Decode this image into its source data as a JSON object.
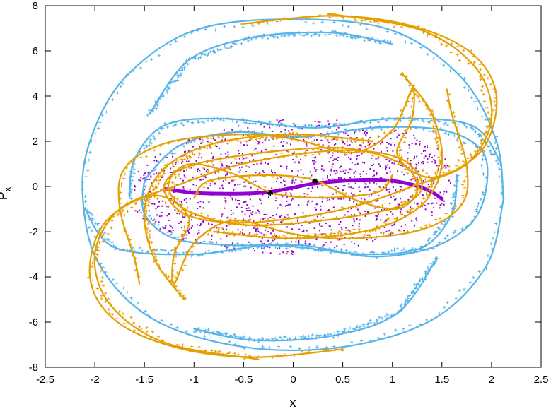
{
  "chart_data": {
    "type": "scatter",
    "title": "",
    "xlabel": "x",
    "ylabel_main": "P",
    "ylabel_sub": "x",
    "xlim": [
      -2.5,
      2.5
    ],
    "ylim": [
      -8,
      8
    ],
    "xticks": [
      -2.5,
      -2,
      -1.5,
      -1,
      -0.5,
      0,
      0.5,
      1,
      1.5,
      2,
      2.5
    ],
    "xtick_labels": [
      "-2.5",
      "-2",
      "-1.5",
      "-1",
      "-0.5",
      "0",
      "0.5",
      "1",
      "1.5",
      "2",
      "2.5"
    ],
    "yticks": [
      -8,
      -6,
      -4,
      -2,
      0,
      2,
      4,
      6,
      8
    ],
    "ytick_labels": [
      "-8",
      "-6",
      "-4",
      "-2",
      "0",
      "2",
      "4",
      "6",
      "8"
    ],
    "grid": false,
    "legend": "none",
    "colors": {
      "purple": "#9400d3",
      "blue": "#56b4e9",
      "orange": "#e69f00",
      "black": "#000000"
    },
    "series": [
      {
        "color": "purple",
        "marker": "dot",
        "curve": [
          [
            -1.3,
            -0.1
          ],
          [
            -1.0,
            -0.28
          ],
          [
            -0.7,
            -0.32
          ],
          [
            -0.4,
            -0.3
          ],
          [
            -0.2,
            -0.22
          ],
          [
            0.0,
            -0.05
          ],
          [
            0.2,
            0.12
          ],
          [
            0.5,
            0.25
          ],
          [
            0.8,
            0.3
          ],
          [
            1.05,
            0.22
          ],
          [
            1.25,
            0.02
          ],
          [
            1.4,
            -0.25
          ],
          [
            1.5,
            -0.55
          ]
        ],
        "scatter_region": {
          "x_range": [
            -1.6,
            1.6
          ],
          "y_range": [
            -3.2,
            3.0
          ]
        }
      },
      {
        "color": "blue",
        "marker": "plus",
        "curves": [
          [
            [
              2.12,
              -0.6
            ],
            [
              2.05,
              2.0
            ],
            [
              1.7,
              4.8
            ],
            [
              1.0,
              6.9
            ],
            [
              0.0,
              7.4
            ],
            [
              -1.0,
              6.9
            ],
            [
              -1.7,
              4.8
            ],
            [
              -2.05,
              2.0
            ],
            [
              -2.12,
              -0.6
            ],
            [
              -1.95,
              -3.5
            ],
            [
              -1.4,
              -5.9
            ],
            [
              -0.5,
              -7.1
            ],
            [
              0.5,
              -7.1
            ],
            [
              1.4,
              -5.9
            ],
            [
              1.95,
              -3.5
            ],
            [
              2.12,
              -0.6
            ]
          ],
          [
            [
              -1.5,
              0.3
            ],
            [
              -1.15,
              1.8
            ],
            [
              -0.6,
              2.4
            ],
            [
              0.1,
              2.2
            ],
            [
              0.8,
              2.6
            ],
            [
              1.5,
              2.5
            ],
            [
              1.9,
              1.6
            ],
            [
              1.95,
              0.0
            ],
            [
              1.8,
              -1.6
            ],
            [
              1.4,
              -2.7
            ],
            [
              0.8,
              -3.1
            ],
            [
              0.1,
              -2.6
            ],
            [
              -0.6,
              -2.6
            ],
            [
              -1.2,
              -2.3
            ],
            [
              -1.5,
              -1.2
            ],
            [
              -1.5,
              0.3
            ]
          ],
          [
            [
              -1.65,
              -0.5
            ],
            [
              -1.6,
              1.2
            ],
            [
              -1.3,
              2.7
            ],
            [
              -0.7,
              3.0
            ],
            [
              0.2,
              2.6
            ],
            [
              1.0,
              3.0
            ],
            [
              1.8,
              2.7
            ],
            [
              2.1,
              1.0
            ]
          ],
          [
            [
              1.65,
              0.5
            ],
            [
              1.6,
              -1.2
            ],
            [
              1.3,
              -2.7
            ],
            [
              0.7,
              -3.0
            ],
            [
              -0.2,
              -2.6
            ],
            [
              -1.0,
              -3.0
            ],
            [
              -1.8,
              -2.7
            ],
            [
              -2.1,
              -1.0
            ]
          ],
          [
            [
              -1.45,
              3.2
            ],
            [
              -1.05,
              5.6
            ],
            [
              -0.4,
              6.6
            ],
            [
              0.4,
              6.8
            ],
            [
              1.0,
              6.3
            ]
          ],
          [
            [
              1.45,
              -3.2
            ],
            [
              1.05,
              -5.6
            ],
            [
              0.4,
              -6.6
            ],
            [
              -0.4,
              -6.8
            ],
            [
              -1.0,
              -6.3
            ]
          ]
        ]
      },
      {
        "color": "orange",
        "marker": "plus",
        "curves": [
          [
            [
              0.35,
              7.65
            ],
            [
              1.3,
              6.9
            ],
            [
              1.85,
              5.2
            ],
            [
              2.0,
              3.0
            ],
            [
              1.75,
              1.0
            ],
            [
              1.2,
              0.0
            ],
            [
              0.6,
              -0.9
            ],
            [
              0.0,
              -1.4
            ],
            [
              -0.6,
              -1.6
            ],
            [
              -1.1,
              -1.2
            ],
            [
              -1.3,
              0.0
            ],
            [
              -1.05,
              0.9
            ],
            [
              -0.3,
              1.5
            ],
            [
              0.5,
              1.7
            ],
            [
              1.05,
              1.1
            ],
            [
              1.25,
              0.2
            ],
            [
              1.2,
              -0.6
            ],
            [
              1.0,
              -1.0
            ],
            [
              0.6,
              -0.55
            ],
            [
              0.2,
              0.3
            ],
            [
              -0.3,
              0.5
            ],
            [
              -0.85,
              0.25
            ],
            [
              -1.0,
              -0.5
            ]
          ],
          [
            [
              -0.35,
              -7.65
            ],
            [
              -1.3,
              -6.9
            ],
            [
              -1.85,
              -5.2
            ],
            [
              -2.0,
              -3.0
            ],
            [
              -1.75,
              -1.0
            ],
            [
              -1.2,
              0.0
            ],
            [
              -0.6,
              0.9
            ],
            [
              0.0,
              1.4
            ],
            [
              0.6,
              1.6
            ],
            [
              1.1,
              1.2
            ],
            [
              1.3,
              0.0
            ],
            [
              1.05,
              -0.9
            ],
            [
              0.3,
              -1.5
            ],
            [
              -0.5,
              -1.7
            ],
            [
              -1.05,
              -1.1
            ],
            [
              -1.25,
              -0.2
            ],
            [
              -1.2,
              0.6
            ],
            [
              -1.0,
              1.0
            ],
            [
              -0.6,
              0.55
            ],
            [
              -0.2,
              -0.3
            ],
            [
              0.3,
              -0.5
            ],
            [
              0.85,
              -0.25
            ],
            [
              1.0,
              0.5
            ]
          ],
          [
            [
              -0.5,
              7.2
            ],
            [
              0.4,
              7.55
            ],
            [
              1.2,
              7.1
            ],
            [
              1.8,
              5.9
            ],
            [
              2.05,
              4.0
            ],
            [
              1.9,
              1.6
            ],
            [
              1.4,
              0.4
            ],
            [
              1.05,
              1.4
            ],
            [
              1.2,
              3.0
            ],
            [
              1.2,
              4.3
            ],
            [
              1.0,
              2.5
            ],
            [
              0.6,
              1.5
            ],
            [
              0.0,
              2.1
            ],
            [
              -0.6,
              2.3
            ],
            [
              -1.3,
              1.9
            ],
            [
              -1.7,
              0.8
            ],
            [
              -1.75,
              -0.9
            ],
            [
              -1.6,
              -3.2
            ],
            [
              -1.55,
              -4.3
            ]
          ],
          [
            [
              0.5,
              -7.2
            ],
            [
              -0.4,
              -7.55
            ],
            [
              -1.2,
              -7.1
            ],
            [
              -1.8,
              -5.9
            ],
            [
              -2.05,
              -4.0
            ],
            [
              -1.9,
              -1.6
            ],
            [
              -1.4,
              -0.4
            ],
            [
              -1.05,
              -1.4
            ],
            [
              -1.2,
              -3.0
            ],
            [
              -1.2,
              -4.3
            ],
            [
              -1.0,
              -2.5
            ],
            [
              -0.6,
              -1.5
            ],
            [
              0.0,
              -2.1
            ],
            [
              0.6,
              -2.3
            ],
            [
              1.3,
              -1.9
            ],
            [
              1.7,
              -0.8
            ],
            [
              1.75,
              0.9
            ],
            [
              1.6,
              3.2
            ],
            [
              1.55,
              4.3
            ]
          ],
          [
            [
              -1.1,
              -5.0
            ],
            [
              -1.4,
              -3.2
            ],
            [
              -1.5,
              -1.0
            ],
            [
              -1.3,
              0.8
            ],
            [
              -0.8,
              1.9
            ],
            [
              0.0,
              2.3
            ],
            [
              0.8,
              2.0
            ]
          ],
          [
            [
              1.1,
              5.0
            ],
            [
              1.4,
              3.2
            ],
            [
              1.5,
              1.0
            ],
            [
              1.3,
              -0.8
            ],
            [
              0.8,
              -1.9
            ],
            [
              0.0,
              -2.3
            ],
            [
              -0.8,
              -2.0
            ]
          ]
        ]
      }
    ],
    "marked_points": [
      [
        -0.23,
        -0.28
      ],
      [
        0.22,
        0.24
      ]
    ]
  }
}
